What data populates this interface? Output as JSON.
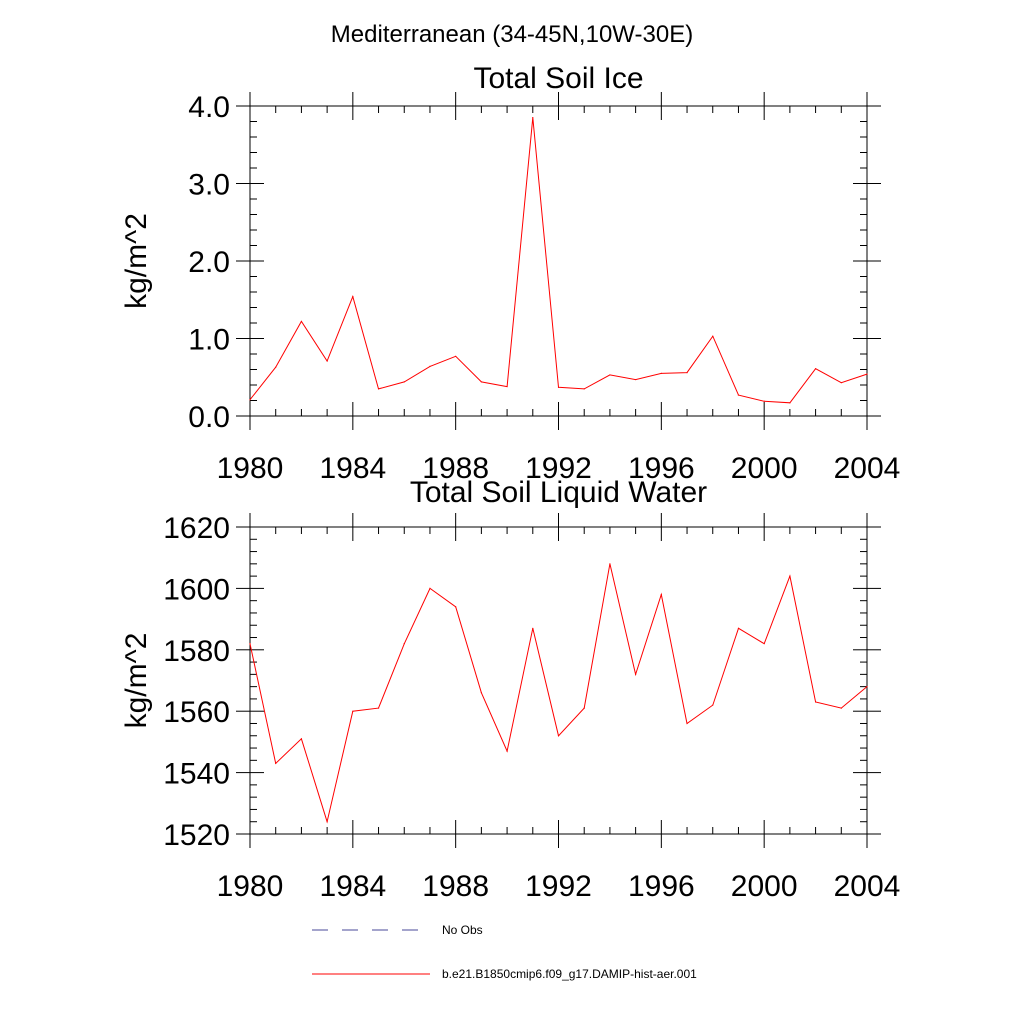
{
  "figure": {
    "title": "Mediterranean (34-45N,10W-30E)"
  },
  "colors": {
    "model": "#ff0000",
    "obs": "#4a4a9a",
    "axis": "#000000"
  },
  "legend": {
    "obs_label": "No Obs",
    "model_label": "b.e21.B1850cmip6.f09_g17.DAMIP-hist-aer.001"
  },
  "chart_data": [
    {
      "type": "line",
      "title": "Total Soil Ice",
      "xlabel": "",
      "ylabel": "kg/m^2",
      "xlim": [
        1980,
        2004
      ],
      "ylim": [
        0,
        4
      ],
      "xticks": [
        1980,
        1984,
        1988,
        1992,
        1996,
        2000,
        2004
      ],
      "xtick_labels": [
        "1980",
        "1984",
        "1988",
        "1992",
        "1996",
        "2000",
        "2004"
      ],
      "yticks": [
        0,
        1,
        2,
        3,
        4
      ],
      "ytick_labels": [
        "0.0",
        "1.0",
        "2.0",
        "3.0",
        "4.0"
      ],
      "grid": false,
      "series": [
        {
          "name": "b.e21.B1850cmip6.f09_g17.DAMIP-hist-aer.001",
          "x": [
            1980,
            1981,
            1982,
            1983,
            1984,
            1985,
            1986,
            1987,
            1988,
            1989,
            1990,
            1991,
            1992,
            1993,
            1994,
            1995,
            1996,
            1997,
            1998,
            1999,
            2000,
            2001,
            2002,
            2003,
            2004
          ],
          "values": [
            0.21,
            0.63,
            1.22,
            0.71,
            1.54,
            0.35,
            0.44,
            0.64,
            0.77,
            0.44,
            0.38,
            3.85,
            0.37,
            0.35,
            0.53,
            0.47,
            0.55,
            0.56,
            1.03,
            0.27,
            0.19,
            0.17,
            0.61,
            0.43,
            0.54
          ]
        }
      ]
    },
    {
      "type": "line",
      "title": "Total Soil Liquid Water",
      "xlabel": "",
      "ylabel": "kg/m^2",
      "xlim": [
        1980,
        2004
      ],
      "ylim": [
        1520,
        1620
      ],
      "xticks": [
        1980,
        1984,
        1988,
        1992,
        1996,
        2000,
        2004
      ],
      "xtick_labels": [
        "1980",
        "1984",
        "1988",
        "1992",
        "1996",
        "2000",
        "2004"
      ],
      "yticks": [
        1520,
        1540,
        1560,
        1580,
        1600,
        1620
      ],
      "ytick_labels": [
        "1520",
        "1540",
        "1560",
        "1580",
        "1600",
        "1620"
      ],
      "grid": false,
      "series": [
        {
          "name": "b.e21.B1850cmip6.f09_g17.DAMIP-hist-aer.001",
          "x": [
            1980,
            1981,
            1982,
            1983,
            1984,
            1985,
            1986,
            1987,
            1988,
            1989,
            1990,
            1991,
            1992,
            1993,
            1994,
            1995,
            1996,
            1997,
            1998,
            1999,
            2000,
            2001,
            2002,
            2003,
            2004
          ],
          "values": [
            1582,
            1543,
            1551,
            1524,
            1560,
            1561,
            1582,
            1600,
            1594,
            1566,
            1547,
            1587,
            1552,
            1561,
            1608,
            1572,
            1598,
            1556,
            1562,
            1587,
            1582,
            1604,
            1563,
            1561,
            1568
          ]
        }
      ]
    }
  ]
}
